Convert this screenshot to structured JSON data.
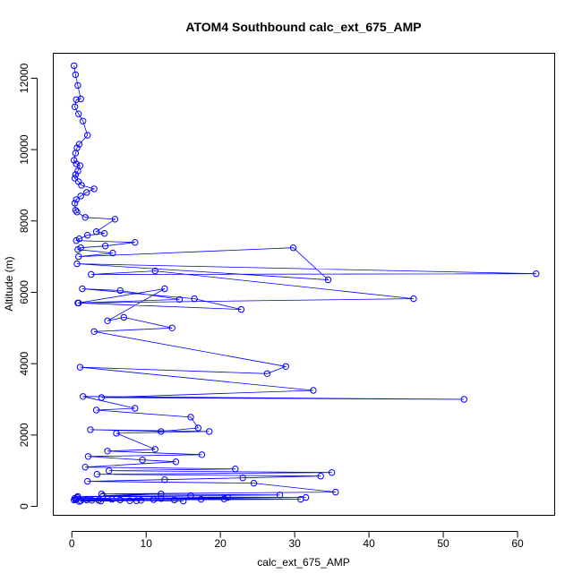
{
  "chart_data": {
    "type": "scatter",
    "title": "ATOM4 Southbound calc_ext_675_AMP",
    "xlabel": "calc_ext_675_AMP",
    "ylabel": "Altitude (m)",
    "xlim": [
      -2.5,
      65
    ],
    "ylim": [
      -250,
      12700
    ],
    "xticks": [
      0,
      10,
      20,
      30,
      40,
      50,
      60
    ],
    "yticks": [
      0,
      2000,
      4000,
      6000,
      8000,
      10000,
      12000
    ],
    "grid": false,
    "series_color": "#0000ff",
    "series": [
      {
        "x": [
          0.3,
          0.5,
          0.8,
          1.2,
          0.6,
          0.4,
          0.9,
          1.5,
          2.1,
          1.0,
          0.7,
          0.5,
          0.3,
          0.6,
          1.1,
          0.8,
          0.5,
          0.4,
          0.9,
          1.3,
          3.0,
          2.0,
          1.2,
          0.6,
          0.4,
          0.5,
          0.7,
          1.8,
          5.8,
          3.3,
          4.4,
          2.1,
          1.0,
          0.6,
          8.5,
          4.5,
          1.2,
          0.8,
          5.5,
          0.9,
          29.8,
          34.5,
          0.7,
          62.5,
          2.6,
          11.2,
          46.0,
          0.9,
          22.8,
          16.5,
          1.4,
          6.5,
          14.5,
          0.8,
          12.5,
          4.8,
          7.0,
          13.5,
          3.0,
          28.8,
          26.3,
          1.1,
          32.5,
          4.0,
          52.8,
          1.5,
          8.5,
          3.3,
          16.0,
          17.0,
          12.0,
          2.5,
          18.5,
          6.0,
          11.2,
          4.8,
          17.5,
          2.2,
          9.5,
          14.0,
          1.8,
          22.0,
          5.0,
          35.0,
          3.4,
          33.5,
          23.0,
          12.5,
          2.1,
          24.5,
          35.5,
          4.0,
          28.0,
          16.0,
          0.8,
          31.5,
          12.0,
          30.8,
          6.5,
          15.0,
          2.0,
          8.7,
          17.4,
          3.6,
          11.0,
          20.5,
          0.4,
          13.8,
          7.8,
          1.0,
          9.3,
          0.5,
          5.4,
          0.3,
          3.9,
          1.2,
          2.7,
          0.6,
          21.0,
          4.2,
          12.0,
          0.7
        ],
        "y": [
          12350,
          12100,
          11800,
          11420,
          11400,
          11200,
          11000,
          10800,
          10400,
          10150,
          10050,
          9900,
          9700,
          9600,
          9550,
          9400,
          9300,
          9200,
          9100,
          9000,
          8900,
          8800,
          8700,
          8600,
          8500,
          8300,
          8250,
          8100,
          8050,
          7700,
          7650,
          7600,
          7500,
          7450,
          7400,
          7300,
          7250,
          7200,
          7100,
          7000,
          7250,
          6350,
          6800,
          6520,
          6500,
          6600,
          5820,
          5700,
          5520,
          5820,
          6100,
          6050,
          5800,
          5700,
          6100,
          5200,
          5300,
          5000,
          4900,
          3920,
          3720,
          3900,
          3250,
          3050,
          3000,
          3080,
          2750,
          2700,
          2500,
          2200,
          2100,
          2150,
          2100,
          2050,
          1600,
          1550,
          1450,
          1400,
          1300,
          1250,
          1100,
          1050,
          1000,
          950,
          900,
          850,
          800,
          750,
          700,
          650,
          400,
          350,
          320,
          300,
          280,
          250,
          220,
          200,
          180,
          150,
          180,
          160,
          200,
          170,
          190,
          210,
          230,
          180,
          160,
          140,
          170,
          190,
          200,
          180,
          150,
          160,
          170,
          200,
          250,
          300,
          350,
          250
        ]
      }
    ]
  }
}
